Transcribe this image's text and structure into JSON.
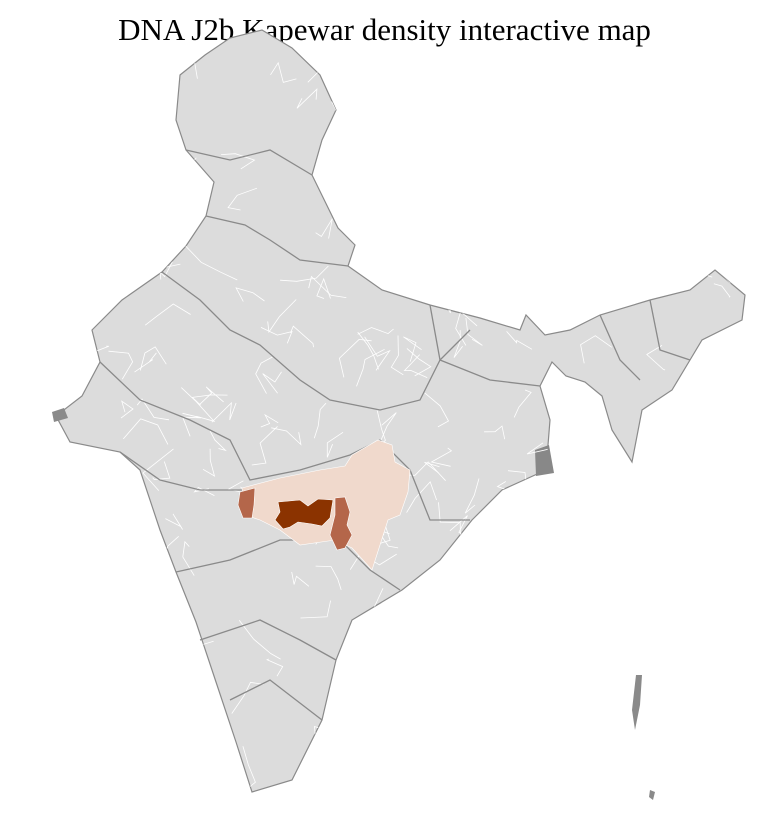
{
  "title": "DNA J2b Kapewar density interactive map",
  "colors": {
    "land": "#dcdcdc",
    "district_border": "#ffffff",
    "state_border": "#8a8a8a",
    "density_low": "#f0d9cc",
    "density_medium": "#b4664a",
    "density_high": "#8b3300"
  }
}
